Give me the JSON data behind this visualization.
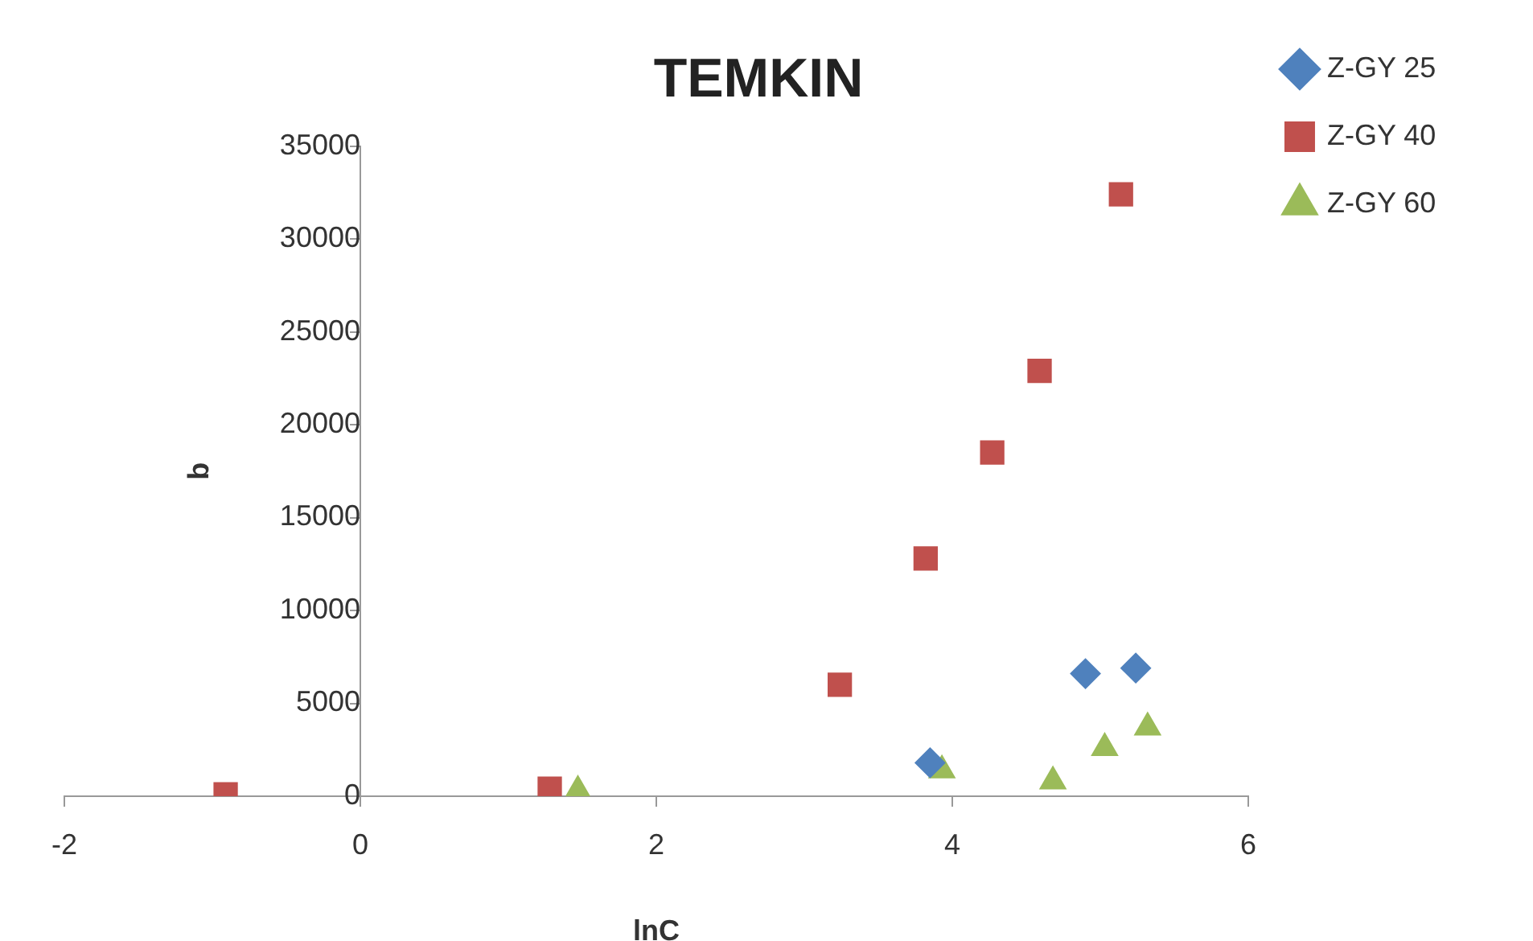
{
  "chart_data": {
    "type": "scatter",
    "title": "TEMKIN",
    "xlabel": "lnC",
    "ylabel": "q",
    "xlim": [
      -2,
      6
    ],
    "xticks": [
      -2,
      0,
      2,
      4,
      6
    ],
    "ylim": [
      0,
      35000
    ],
    "yticks": [
      0,
      5000,
      10000,
      15000,
      20000,
      25000,
      30000,
      35000
    ],
    "grid": false,
    "legend": "right",
    "series": [
      {
        "name": "Z-GY 25",
        "color": "#4f81bd",
        "marker": "diamond",
        "x": [
          3.85,
          4.9,
          5.24
        ],
        "values": [
          1800,
          6600,
          6900
        ]
      },
      {
        "name": "Z-GY 40",
        "color": "#c0504d",
        "marker": "square",
        "x": [
          -0.91,
          1.28,
          3.24,
          3.82,
          4.27,
          4.59,
          5.14
        ],
        "values": [
          100,
          400,
          6000,
          12800,
          18500,
          22900,
          32400
        ]
      },
      {
        "name": "Z-GY 60",
        "color": "#9bbb59",
        "marker": "triangle",
        "x": [
          1.47,
          3.93,
          4.68,
          5.03,
          5.32
        ],
        "values": [
          300,
          1400,
          800,
          2600,
          3700
        ]
      }
    ]
  }
}
